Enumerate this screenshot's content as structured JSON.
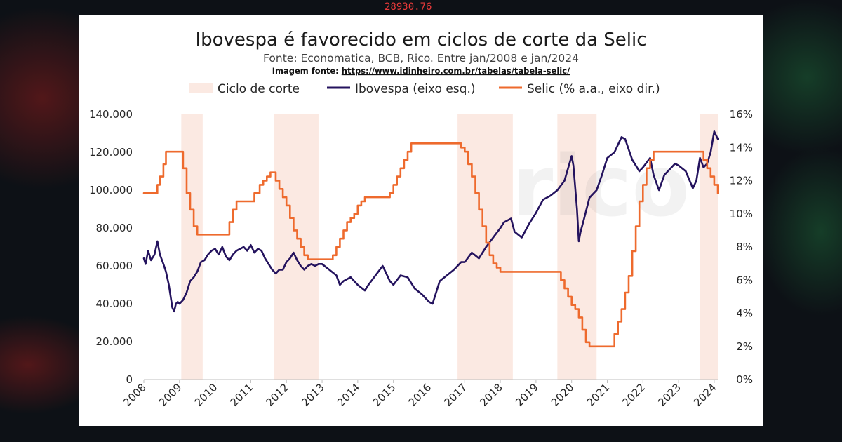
{
  "background": {
    "ticker_text": "28930.76",
    "colors": {
      "base": "#0d1116",
      "red_glow": "#8a1c1c",
      "green_glow": "#1e6a3a",
      "ticker": "#e83a3a"
    }
  },
  "chart_data": {
    "type": "line",
    "title": "Ibovespa é favorecido em ciclos de corte da Selic",
    "subtitle": "Fonte: Economatica, BCB, Rico. Entre jan/2008 e jan/2024",
    "source_label": "Imagem fonte: ",
    "source_url": "https://www.idinheiro.com.br/tabelas/tabela-selic/",
    "legend_position": "top",
    "legend": [
      {
        "key": "shade",
        "label": "Ciclo de corte",
        "color": "#fbe9e2"
      },
      {
        "key": "ibov",
        "label": "Ibovespa (eixo esq.)",
        "color": "#24135e"
      },
      {
        "key": "selic",
        "label": "Selic (% a.a., eixo dir.)",
        "color": "#ee6a2d"
      }
    ],
    "x_ticks": [
      "2008",
      "2009",
      "2010",
      "2011",
      "2012",
      "2013",
      "2014",
      "2015",
      "2016",
      "2017",
      "2018",
      "2019",
      "2020",
      "2021",
      "2022",
      "2023",
      "2024"
    ],
    "x_range": [
      2008,
      2024.1
    ],
    "y_left": {
      "range": [
        0,
        140000
      ],
      "ticks": [
        0,
        20000,
        40000,
        60000,
        80000,
        100000,
        120000,
        140000
      ],
      "tick_labels": [
        "0",
        "20.000",
        "40.000",
        "60.000",
        "80.000",
        "100.000",
        "120.000",
        "140.000"
      ]
    },
    "y_right": {
      "range": [
        0,
        16
      ],
      "ticks": [
        0,
        2,
        4,
        6,
        8,
        10,
        12,
        14,
        16
      ],
      "tick_labels": [
        "0%",
        "2%",
        "4%",
        "6%",
        "8%",
        "10%",
        "12%",
        "14%",
        "16%"
      ]
    },
    "grid": false,
    "shaded_periods": [
      {
        "start": 2009.05,
        "end": 2009.65
      },
      {
        "start": 2011.65,
        "end": 2012.9
      },
      {
        "start": 2016.8,
        "end": 2018.35
      },
      {
        "start": 2019.6,
        "end": 2020.7
      },
      {
        "start": 2023.6,
        "end": 2024.1
      }
    ],
    "series": [
      {
        "key": "ibov",
        "name": "Ibovespa (eixo esq.)",
        "axis": "left",
        "color": "#24135e",
        "x": [
          2008.0,
          2008.05,
          2008.12,
          2008.2,
          2008.3,
          2008.38,
          2008.45,
          2008.55,
          2008.62,
          2008.7,
          2008.75,
          2008.8,
          2008.85,
          2008.9,
          2008.95,
          2009.0,
          2009.1,
          2009.2,
          2009.3,
          2009.4,
          2009.5,
          2009.6,
          2009.7,
          2009.8,
          2009.9,
          2010.0,
          2010.1,
          2010.2,
          2010.3,
          2010.4,
          2010.5,
          2010.6,
          2010.7,
          2010.8,
          2010.9,
          2011.0,
          2011.1,
          2011.2,
          2011.3,
          2011.4,
          2011.5,
          2011.6,
          2011.7,
          2011.8,
          2011.9,
          2012.0,
          2012.1,
          2012.2,
          2012.3,
          2012.4,
          2012.5,
          2012.6,
          2012.7,
          2012.8,
          2012.9,
          2013.0,
          2013.2,
          2013.4,
          2013.5,
          2013.6,
          2013.8,
          2014.0,
          2014.2,
          2014.3,
          2014.5,
          2014.7,
          2014.9,
          2015.0,
          2015.2,
          2015.4,
          2015.6,
          2015.8,
          2016.0,
          2016.1,
          2016.3,
          2016.5,
          2016.7,
          2016.9,
          2017.0,
          2017.2,
          2017.4,
          2017.6,
          2017.8,
          2018.0,
          2018.1,
          2018.3,
          2018.4,
          2018.6,
          2018.8,
          2019.0,
          2019.2,
          2019.4,
          2019.6,
          2019.8,
          2020.0,
          2020.05,
          2020.15,
          2020.2,
          2020.25,
          2020.35,
          2020.5,
          2020.6,
          2020.7,
          2020.85,
          2021.0,
          2021.2,
          2021.4,
          2021.5,
          2021.7,
          2021.9,
          2022.0,
          2022.2,
          2022.3,
          2022.45,
          2022.6,
          2022.8,
          2022.9,
          2023.0,
          2023.2,
          2023.4,
          2023.5,
          2023.6,
          2023.7,
          2023.8,
          2023.9,
          2024.0,
          2024.1
        ],
        "values": [
          64000,
          61000,
          68000,
          63000,
          66000,
          73000,
          66000,
          61000,
          57000,
          50000,
          44000,
          38000,
          36000,
          40000,
          41000,
          40000,
          42000,
          46000,
          52000,
          54000,
          57000,
          62000,
          63000,
          66000,
          68000,
          69000,
          66000,
          70000,
          65000,
          63000,
          66000,
          68000,
          69000,
          70000,
          68000,
          71000,
          67000,
          69000,
          68000,
          64000,
          61000,
          58000,
          56000,
          58000,
          58000,
          62000,
          64000,
          67000,
          63000,
          60000,
          58000,
          60000,
          61000,
          60000,
          61000,
          61000,
          58000,
          55000,
          50000,
          52000,
          54000,
          50000,
          47000,
          50000,
          55000,
          60000,
          52000,
          50000,
          55000,
          54000,
          48000,
          45000,
          41000,
          40000,
          52000,
          55000,
          58000,
          62000,
          62000,
          67000,
          64000,
          70000,
          75000,
          80000,
          83000,
          85000,
          78000,
          75000,
          82000,
          88000,
          95000,
          97000,
          100000,
          105000,
          118000,
          113000,
          90000,
          73000,
          78000,
          85000,
          96000,
          98000,
          100000,
          108000,
          117000,
          120000,
          128000,
          127000,
          116000,
          110000,
          112000,
          117000,
          108000,
          100000,
          108000,
          112000,
          114000,
          113000,
          110000,
          101000,
          105000,
          117000,
          112000,
          114000,
          120000,
          131000,
          127000
        ],
        "ylim": [
          0,
          140000
        ]
      },
      {
        "key": "selic",
        "name": "Selic (% a.a., eixo dir.)",
        "axis": "right",
        "color": "#ee6a2d",
        "x": [
          2008.0,
          2008.28,
          2008.38,
          2008.45,
          2008.55,
          2008.62,
          2008.7,
          2009.0,
          2009.1,
          2009.2,
          2009.3,
          2009.4,
          2009.5,
          2009.6,
          2010.3,
          2010.4,
          2010.5,
          2010.6,
          2011.0,
          2011.1,
          2011.25,
          2011.35,
          2011.45,
          2011.55,
          2011.7,
          2011.8,
          2011.9,
          2012.0,
          2012.1,
          2012.2,
          2012.3,
          2012.4,
          2012.5,
          2012.6,
          2012.7,
          2012.8,
          2013.3,
          2013.4,
          2013.5,
          2013.6,
          2013.7,
          2013.8,
          2013.9,
          2014.0,
          2014.1,
          2014.2,
          2014.3,
          2014.8,
          2014.9,
          2015.0,
          2015.1,
          2015.2,
          2015.3,
          2015.4,
          2015.5,
          2016.8,
          2016.9,
          2017.0,
          2017.1,
          2017.2,
          2017.3,
          2017.4,
          2017.5,
          2017.6,
          2017.7,
          2017.8,
          2017.9,
          2018.0,
          2018.1,
          2018.2,
          2019.6,
          2019.7,
          2019.8,
          2019.9,
          2020.0,
          2020.1,
          2020.2,
          2020.3,
          2020.4,
          2020.5,
          2020.6,
          2021.0,
          2021.2,
          2021.3,
          2021.4,
          2021.5,
          2021.6,
          2021.7,
          2021.8,
          2021.9,
          2022.0,
          2022.1,
          2022.2,
          2022.3,
          2022.4,
          2022.5,
          2022.6,
          2023.6,
          2023.7,
          2023.8,
          2023.9,
          2024.0,
          2024.1
        ],
        "values": [
          11.25,
          11.25,
          11.75,
          12.25,
          13.0,
          13.75,
          13.75,
          13.75,
          12.75,
          11.25,
          10.25,
          9.25,
          8.75,
          8.75,
          8.75,
          9.5,
          10.25,
          10.75,
          10.75,
          11.25,
          11.75,
          12.0,
          12.25,
          12.5,
          12.0,
          11.5,
          11.0,
          10.5,
          9.75,
          9.0,
          8.5,
          8.0,
          7.5,
          7.25,
          7.25,
          7.25,
          7.5,
          8.0,
          8.5,
          9.0,
          9.5,
          9.75,
          10.0,
          10.5,
          10.75,
          11.0,
          11.0,
          11.0,
          11.25,
          11.75,
          12.25,
          12.75,
          13.25,
          13.75,
          14.25,
          14.25,
          14.0,
          13.75,
          13.0,
          12.25,
          11.25,
          10.25,
          9.25,
          8.25,
          7.5,
          7.0,
          6.75,
          6.5,
          6.5,
          6.5,
          6.5,
          6.0,
          5.5,
          5.0,
          4.5,
          4.25,
          3.75,
          3.0,
          2.25,
          2.0,
          2.0,
          2.0,
          2.75,
          3.5,
          4.25,
          5.25,
          6.25,
          7.75,
          9.25,
          10.75,
          11.75,
          12.75,
          13.25,
          13.75,
          13.75,
          13.75,
          13.75,
          13.75,
          13.25,
          12.75,
          12.25,
          11.75,
          11.25
        ],
        "ylim": [
          0,
          16
        ]
      }
    ]
  }
}
